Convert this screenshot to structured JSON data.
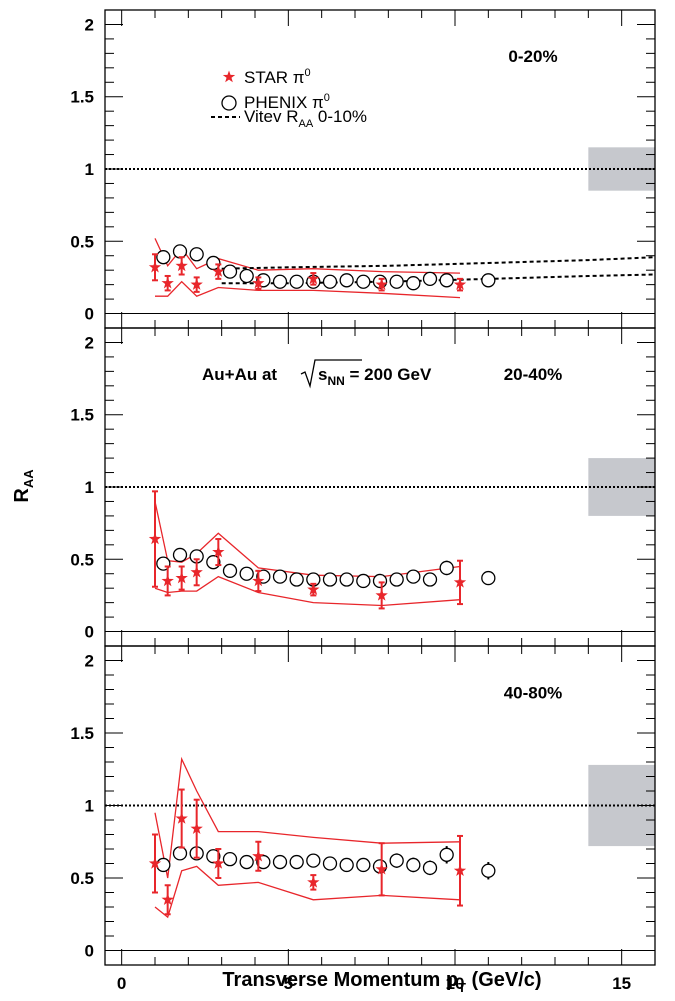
{
  "chart_data": {
    "type": "scatter",
    "xlabel": {
      "main": "Transverse Momentum p",
      "sub": "T",
      "tail": " (GeV/c)"
    },
    "ylabel": {
      "main": "R",
      "sub": "AA"
    },
    "xlim": [
      -0.5,
      16
    ],
    "ylim": [
      -0.1,
      2.1
    ],
    "x_ticks": [
      0,
      5,
      10,
      15
    ],
    "y_ticks": [
      0,
      0.5,
      1,
      1.5,
      2
    ],
    "y_tick_labels": [
      "0",
      "0.5",
      "1",
      "1.5",
      "2"
    ],
    "legend": {
      "star": {
        "name": "STAR π",
        "sup": "0"
      },
      "phenix": {
        "name": "PHENIX π",
        "sup": "0"
      },
      "vitev": {
        "name": "Vitev R",
        "sub": "AA",
        "tail": " 0-10%"
      }
    },
    "annotation": {
      "pre": "Au+Au at ",
      "s": "s",
      "sub": "NN",
      "tail": " = 200 GeV"
    },
    "reference_line": 1,
    "colors": {
      "star": "#e8262b",
      "band": "#e8262b",
      "phenix": "#000000",
      "box": "#c6c8cd"
    },
    "panels": [
      {
        "label": "0-20%",
        "norm_box": [
          0.85,
          1.15
        ],
        "star": {
          "x": [
            1.0,
            1.38,
            1.8,
            2.25,
            2.9,
            4.1,
            5.75,
            7.8,
            10.15
          ],
          "y": [
            0.32,
            0.21,
            0.33,
            0.2,
            0.29,
            0.21,
            0.24,
            0.2,
            0.2
          ],
          "err": [
            0.09,
            0.05,
            0.06,
            0.05,
            0.05,
            0.04,
            0.04,
            0.04,
            0.04
          ]
        },
        "phenix": {
          "x": [
            1.25,
            1.75,
            2.25,
            2.75,
            3.25,
            3.75,
            4.25,
            4.75,
            5.25,
            5.75,
            6.25,
            6.75,
            7.25,
            7.75,
            8.25,
            8.75,
            9.25,
            9.75,
            11.0
          ],
          "y": [
            0.39,
            0.43,
            0.41,
            0.35,
            0.29,
            0.26,
            0.23,
            0.22,
            0.22,
            0.22,
            0.22,
            0.23,
            0.22,
            0.22,
            0.22,
            0.21,
            0.24,
            0.23,
            0.23
          ],
          "err": [
            0.01,
            0.01,
            0.01,
            0.01,
            0.01,
            0.01,
            0.01,
            0.01,
            0.01,
            0.01,
            0.01,
            0.01,
            0.01,
            0.01,
            0.01,
            0.01,
            0.01,
            0.01,
            0.01
          ]
        },
        "band_upper": {
          "x": [
            1.0,
            1.38,
            1.8,
            2.25,
            2.9,
            4.1,
            5.75,
            7.8,
            10.15
          ],
          "y": [
            0.52,
            0.33,
            0.45,
            0.31,
            0.38,
            0.3,
            0.31,
            0.29,
            0.28
          ]
        },
        "band_lower": {
          "x": [
            1.0,
            1.38,
            1.8,
            2.25,
            2.9,
            4.1,
            5.75,
            7.8,
            10.15
          ],
          "y": [
            0.12,
            0.12,
            0.22,
            0.12,
            0.18,
            0.16,
            0.16,
            0.14,
            0.11
          ]
        },
        "vitev_upper": {
          "x": [
            3.0,
            5.0,
            8.0,
            11.0,
            14.0,
            16.0
          ],
          "y": [
            0.31,
            0.32,
            0.33,
            0.35,
            0.37,
            0.39
          ]
        },
        "vitev_lower": {
          "x": [
            3.0,
            5.0,
            8.0,
            11.0,
            14.0,
            16.0
          ],
          "y": [
            0.21,
            0.21,
            0.22,
            0.24,
            0.26,
            0.27
          ]
        }
      },
      {
        "label": "20-40%",
        "norm_box": [
          0.8,
          1.2
        ],
        "star": {
          "x": [
            1.0,
            1.38,
            1.8,
            2.25,
            2.9,
            4.1,
            5.75,
            7.8,
            10.15
          ],
          "y": [
            0.64,
            0.35,
            0.37,
            0.41,
            0.55,
            0.35,
            0.29,
            0.25,
            0.34
          ],
          "err": [
            0.33,
            0.1,
            0.08,
            0.09,
            0.09,
            0.07,
            0.04,
            0.09,
            0.15
          ]
        },
        "phenix": {
          "x": [
            1.25,
            1.75,
            2.25,
            2.75,
            3.25,
            3.75,
            4.25,
            4.75,
            5.25,
            5.75,
            6.25,
            6.75,
            7.25,
            7.75,
            8.25,
            8.75,
            9.25,
            9.75,
            11.0
          ],
          "y": [
            0.47,
            0.53,
            0.52,
            0.48,
            0.42,
            0.4,
            0.38,
            0.38,
            0.36,
            0.36,
            0.36,
            0.36,
            0.35,
            0.35,
            0.36,
            0.38,
            0.36,
            0.44,
            0.37
          ],
          "err": [
            0.01,
            0.01,
            0.01,
            0.01,
            0.01,
            0.01,
            0.01,
            0.01,
            0.01,
            0.01,
            0.01,
            0.01,
            0.01,
            0.01,
            0.01,
            0.01,
            0.01,
            0.05,
            0.01
          ]
        },
        "band_upper": {
          "x": [
            1.0,
            1.38,
            1.8,
            2.25,
            2.9,
            4.1,
            5.75,
            7.8,
            10.15
          ],
          "y": [
            0.9,
            0.49,
            0.48,
            0.54,
            0.68,
            0.44,
            0.39,
            0.38,
            0.45
          ]
        },
        "band_lower": {
          "x": [
            1.0,
            1.38,
            1.8,
            2.25,
            2.9,
            4.1,
            5.75,
            7.8,
            10.15
          ],
          "y": [
            0.3,
            0.27,
            0.28,
            0.28,
            0.38,
            0.27,
            0.2,
            0.18,
            0.22
          ]
        }
      },
      {
        "label": "40-80%",
        "norm_box": [
          0.72,
          1.28
        ],
        "star": {
          "x": [
            1.0,
            1.38,
            1.8,
            2.25,
            2.9,
            4.1,
            5.75,
            7.8,
            10.15
          ],
          "y": [
            0.6,
            0.35,
            0.91,
            0.84,
            0.6,
            0.65,
            0.47,
            0.56,
            0.55
          ],
          "err": [
            0.2,
            0.1,
            0.2,
            0.2,
            0.1,
            0.1,
            0.05,
            0.18,
            0.24
          ]
        },
        "phenix": {
          "x": [
            1.25,
            1.75,
            2.25,
            2.75,
            3.25,
            3.75,
            4.25,
            4.75,
            5.25,
            5.75,
            6.25,
            6.75,
            7.25,
            7.75,
            8.25,
            8.75,
            9.25,
            9.75,
            11.0
          ],
          "y": [
            0.59,
            0.67,
            0.67,
            0.65,
            0.63,
            0.61,
            0.61,
            0.61,
            0.61,
            0.62,
            0.6,
            0.59,
            0.59,
            0.58,
            0.62,
            0.59,
            0.57,
            0.66,
            0.55
          ],
          "err": [
            0.01,
            0.01,
            0.01,
            0.01,
            0.01,
            0.01,
            0.01,
            0.01,
            0.01,
            0.01,
            0.01,
            0.01,
            0.01,
            0.01,
            0.05,
            0.05,
            0.05,
            0.06,
            0.06
          ]
        },
        "band_upper": {
          "x": [
            1.0,
            1.38,
            1.8,
            2.25,
            2.9,
            4.1,
            5.75,
            7.8,
            10.15
          ],
          "y": [
            0.95,
            0.5,
            1.32,
            1.1,
            0.82,
            0.82,
            0.78,
            0.74,
            0.75
          ]
        },
        "band_lower": {
          "x": [
            1.0,
            1.38,
            1.8,
            2.25,
            2.9,
            4.1,
            5.75,
            7.8,
            10.15
          ],
          "y": [
            0.3,
            0.23,
            0.55,
            0.58,
            0.45,
            0.47,
            0.35,
            0.38,
            0.35
          ]
        }
      }
    ]
  }
}
